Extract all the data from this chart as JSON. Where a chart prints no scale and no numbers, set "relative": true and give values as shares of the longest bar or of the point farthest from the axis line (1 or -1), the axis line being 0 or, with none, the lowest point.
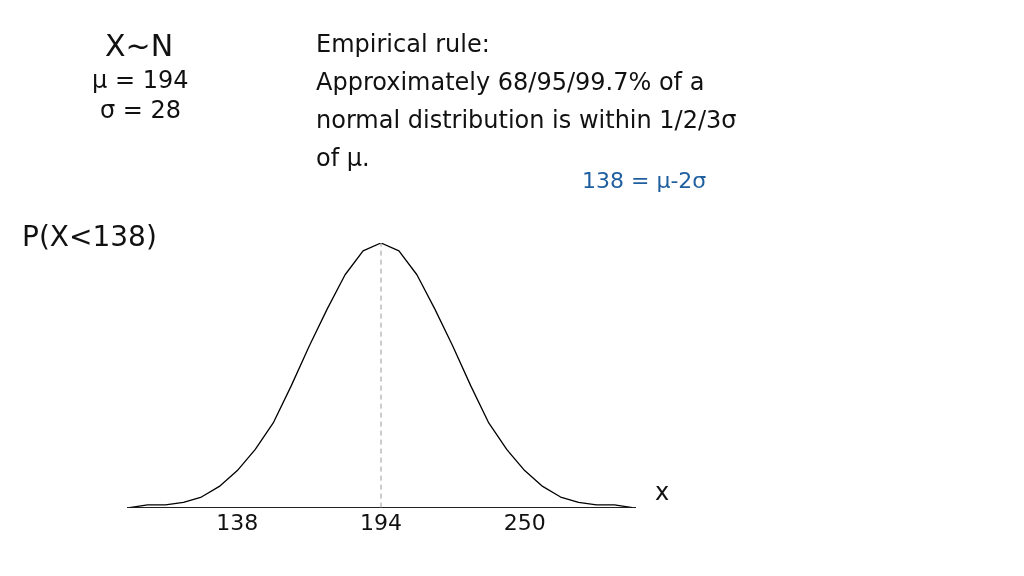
{
  "chart_data": {
    "type": "line",
    "title": "P(X<138)",
    "xlabel": "x",
    "annotations": [
      "X~N",
      "μ = 194",
      "σ = 28",
      "Empirical rule:",
      "Approximately 68/95/99.7% of a",
      "normal distribution is within 1/2/3σ",
      "of μ.",
      "138 = μ-2σ"
    ],
    "relative": true,
    "xlim": [
      95,
      293
    ],
    "xticks": [
      138,
      194,
      250
    ],
    "grid": false,
    "legend": false,
    "marker": "none",
    "line_style": "solid",
    "ref_lines": [
      {
        "axis": "x",
        "value": 194,
        "color": "#999999",
        "line_style": "dashed"
      }
    ],
    "x": [
      96,
      103,
      110,
      117,
      124,
      131,
      138,
      145,
      152,
      159,
      166,
      173,
      180,
      187,
      194,
      201,
      208,
      215,
      222,
      229,
      236,
      243,
      250,
      257,
      264,
      271,
      278,
      285,
      292
    ],
    "series": [
      {
        "color": "#000000",
        "values": [
          0,
          0.01,
          0.01,
          0.02,
          0.04,
          0.08,
          0.14,
          0.22,
          0.32,
          0.46,
          0.61,
          0.75,
          0.88,
          0.97,
          1,
          0.97,
          0.88,
          0.75,
          0.61,
          0.46,
          0.32,
          0.22,
          0.14,
          0.08,
          0.04,
          0.02,
          0.01,
          0.01,
          0
        ]
      }
    ]
  }
}
